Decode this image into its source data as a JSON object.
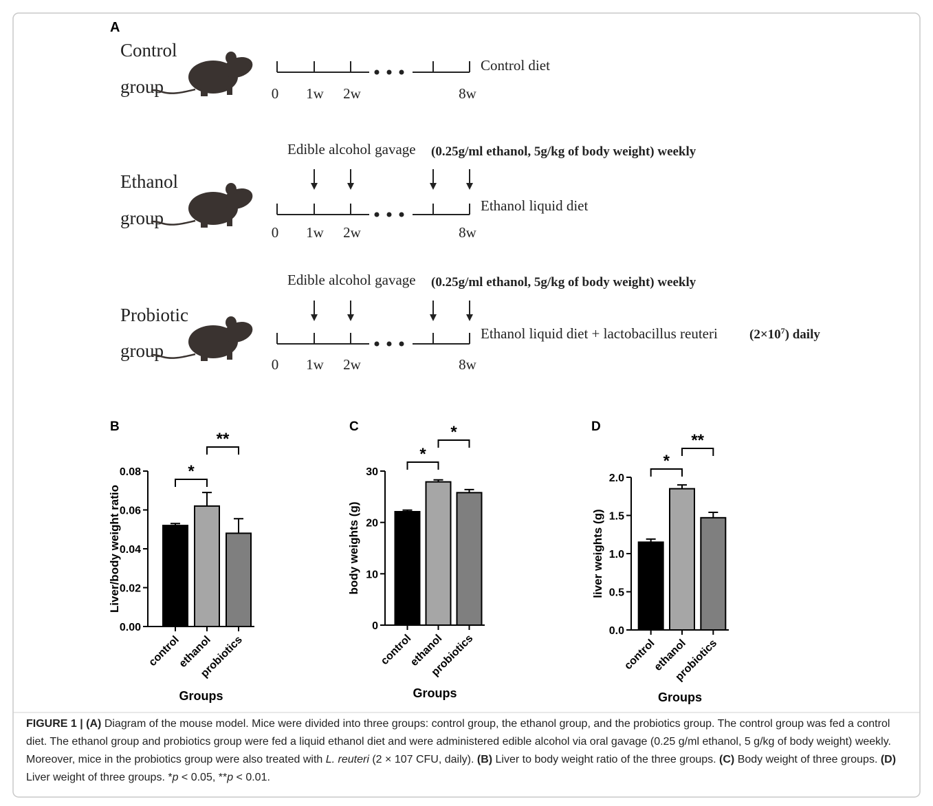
{
  "diagram": {
    "label": "A",
    "timeline_labels": [
      "0",
      "1w",
      "2w",
      "8w"
    ],
    "gavage": "Edible alcohol gavage",
    "dose": "(0.25g/ml ethanol, 5g/kg of body weight) weekly",
    "groups": [
      {
        "name": [
          "Control",
          "group"
        ],
        "diet": "Control diet"
      },
      {
        "name": [
          "Ethanol",
          "group"
        ],
        "diet": "Ethanol liquid diet"
      },
      {
        "name": [
          "Probiotic",
          "group"
        ],
        "diet": "Ethanol liquid diet + lactobacillus reuteri",
        "diet_extra": {
          "text": "(2×10",
          "sup": "7",
          "tail": ") daily"
        }
      }
    ]
  },
  "chart_data": [
    {
      "type": "bar",
      "label": "B",
      "ylabel": "Liver/body weight ratio",
      "xlabel": "Groups",
      "categories": [
        "control",
        "ethanol",
        "probiotics"
      ],
      "values": [
        0.052,
        0.062,
        0.048
      ],
      "errors": [
        0.001,
        0.007,
        0.0075
      ],
      "colors": [
        "#000000",
        "#a6a6a6",
        "#7f7f7f"
      ],
      "ylim": [
        0,
        0.08
      ],
      "yticks": [
        {
          "value": 0,
          "label": "0.00"
        },
        {
          "value": 0.02,
          "label": "0.02"
        },
        {
          "value": 0.04,
          "label": "0.04"
        },
        {
          "value": 0.06,
          "label": "0.06"
        },
        {
          "value": 0.08,
          "label": "0.08"
        }
      ],
      "annotations": [
        {
          "label": "*",
          "between": [
            0,
            1
          ]
        },
        {
          "label": "**",
          "between": [
            1,
            2
          ]
        }
      ]
    },
    {
      "type": "bar",
      "label": "C",
      "ylabel": "body weights (g)",
      "xlabel": "Groups",
      "categories": [
        "control",
        "ethanol",
        "probiotics"
      ],
      "values": [
        22.1,
        27.9,
        25.8
      ],
      "errors": [
        0.3,
        0.4,
        0.6
      ],
      "colors": [
        "#000000",
        "#a6a6a6",
        "#7f7f7f"
      ],
      "ylim": [
        0,
        30
      ],
      "yticks": [
        0,
        10,
        20,
        30
      ],
      "annotations": [
        {
          "label": "*",
          "between": [
            0,
            1
          ]
        },
        {
          "label": "*",
          "between": [
            1,
            2
          ]
        }
      ]
    },
    {
      "type": "bar",
      "label": "D",
      "ylabel": "liver weights (g)",
      "xlabel": "Groups",
      "categories": [
        "control",
        "ethanol",
        "probiotics"
      ],
      "values": [
        1.15,
        1.85,
        1.47
      ],
      "errors": [
        0.04,
        0.05,
        0.07
      ],
      "colors": [
        "#000000",
        "#a6a6a6",
        "#7f7f7f"
      ],
      "ylim": [
        0,
        2.0
      ],
      "yticks": [
        {
          "value": 0,
          "label": "0.0"
        },
        {
          "value": 0.5,
          "label": "0.5"
        },
        {
          "value": 1.0,
          "label": "1.0"
        },
        {
          "value": 1.5,
          "label": "1.5"
        },
        {
          "value": 2.0,
          "label": "2.0"
        }
      ],
      "annotations": [
        {
          "label": "*",
          "between": [
            0,
            1
          ]
        },
        {
          "label": "**",
          "between": [
            1,
            2
          ]
        }
      ]
    }
  ],
  "caption": [
    {
      "text": "FIGURE 1 | (A)",
      "bold": true
    },
    {
      "text": " Diagram of the mouse model. Mice were divided into three groups: control group, the ethanol group, and the probiotics group. The control group was fed a control diet. The ethanol group and probiotics group were fed a liquid ethanol diet and were administered edible alcohol via oral gavage (0.25 g/ml ethanol, 5 g/kg of body weight) weekly. Moreover, mice in the probiotics group were also treated with "
    },
    {
      "text": "L. reuteri",
      "italic": true
    },
    {
      "text": " (2 × 107 CFU, daily). "
    },
    {
      "text": "(B)",
      "bold": true
    },
    {
      "text": " Liver to body weight ratio of the three groups. "
    },
    {
      "text": "(C)",
      "bold": true
    },
    {
      "text": " Body weight of three groups. "
    },
    {
      "text": "(D)",
      "bold": true
    },
    {
      "text": " Liver weight of three groups. *"
    },
    {
      "text": "p",
      "italic": true
    },
    {
      "text": " < 0.05, **"
    },
    {
      "text": "p",
      "italic": true
    },
    {
      "text": " < 0.01."
    }
  ]
}
